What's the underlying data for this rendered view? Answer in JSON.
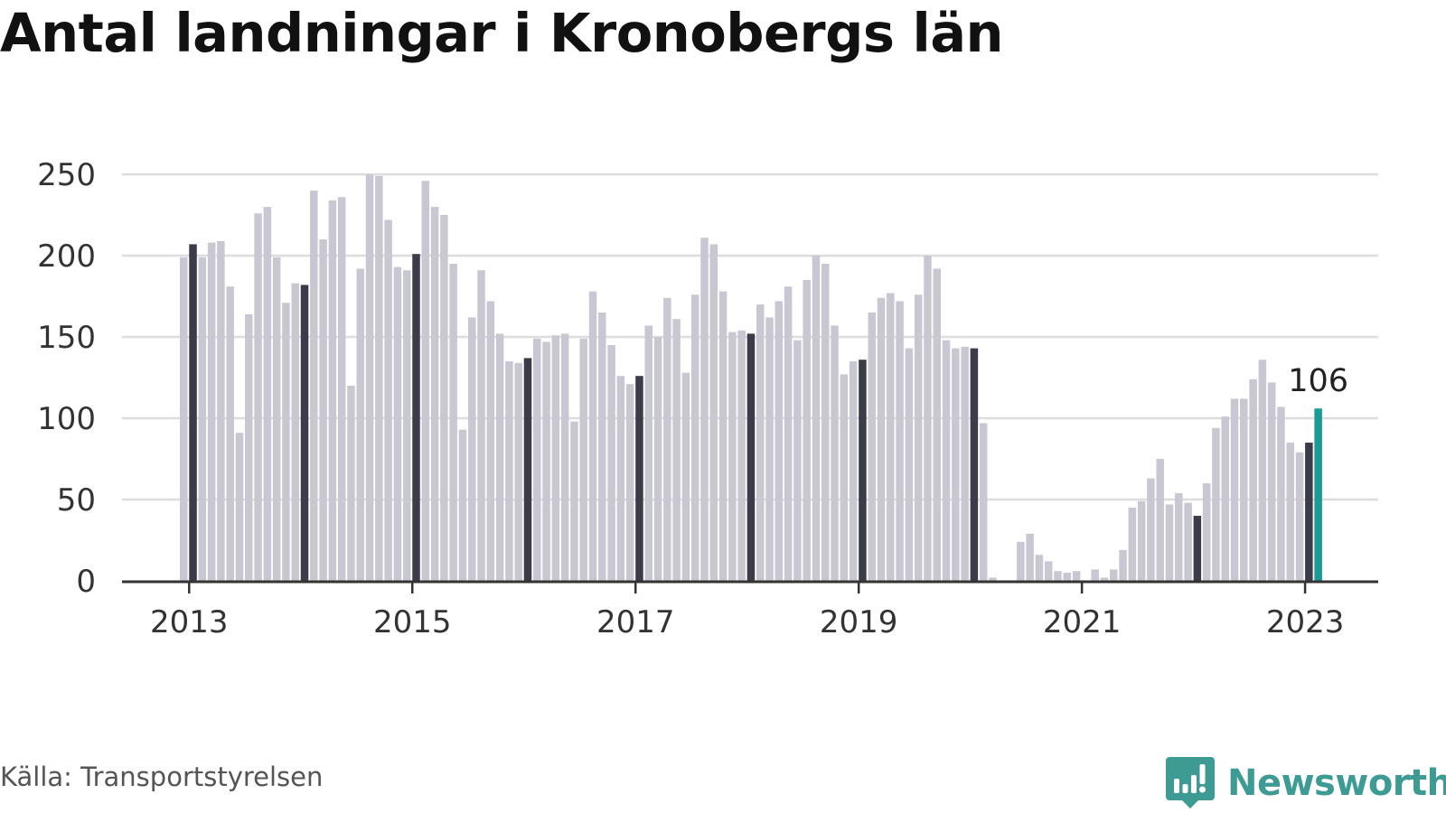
{
  "title": "Antal landningar i Kronobergs län",
  "source": "Källa: Transportstyrelsen",
  "brand": {
    "name": "Newsworthy",
    "icon": "newsworthy-logo-icon",
    "color": "#3d9b94"
  },
  "colors": {
    "regular": "#c9c8d2",
    "january": "#3b3b4a",
    "latest": "#1b9a96",
    "grid": "#dddddd",
    "axis": "#333333"
  },
  "chart_data": {
    "type": "bar",
    "title": "Antal landningar i Kronobergs län",
    "xlabel": "",
    "ylabel": "",
    "ylim": [
      0,
      250
    ],
    "yticks": [
      0,
      50,
      100,
      150,
      200,
      250
    ],
    "xticks": [
      "2013",
      "2015",
      "2017",
      "2019",
      "2021",
      "2023"
    ],
    "grid": true,
    "start": "2012-12",
    "end": "2023-03",
    "highlight_note": "January bars dark; latest month highlighted",
    "annotation": {
      "label": "106",
      "month": "2023-03"
    },
    "values": [
      199,
      207,
      199,
      208,
      209,
      181,
      91,
      164,
      226,
      230,
      199,
      171,
      183,
      182,
      240,
      210,
      234,
      236,
      120,
      192,
      250,
      249,
      222,
      193,
      191,
      201,
      246,
      230,
      225,
      195,
      93,
      162,
      191,
      172,
      152,
      135,
      134,
      137,
      149,
      147,
      151,
      152,
      98,
      149,
      178,
      165,
      145,
      126,
      121,
      126,
      157,
      150,
      174,
      161,
      128,
      176,
      211,
      207,
      178,
      153,
      154,
      152,
      170,
      162,
      172,
      181,
      148,
      185,
      200,
      195,
      157,
      127,
      135,
      136,
      165,
      174,
      177,
      172,
      143,
      176,
      200,
      192,
      148,
      143,
      144,
      143,
      97,
      2,
      0,
      0,
      24,
      29,
      16,
      12,
      6,
      5,
      6,
      0,
      7,
      2,
      7,
      19,
      45,
      49,
      63,
      75,
      47,
      54,
      48,
      40,
      60,
      94,
      101,
      112,
      112,
      124,
      136,
      122,
      107,
      85,
      79,
      85,
      106
    ]
  }
}
